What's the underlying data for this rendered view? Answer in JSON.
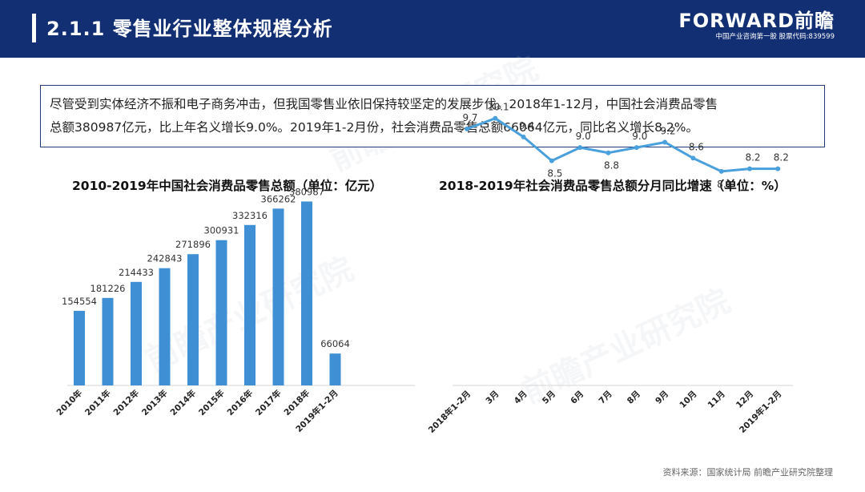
{
  "header": {
    "title": "2.1.1 零售业行业整体规模分析",
    "brand_name": "FORWARD前瞻",
    "brand_sub": "中国产业咨询第一股 股票代码:839599"
  },
  "summary": {
    "line1": "尽管受到实体经济不振和电子商务冲击，但我国零售业依旧保持较坚定的发展步伐。2018年1-12月，中国社会消费品零售",
    "line2": "总额380987亿元，比上年名义增长9.0%。2019年1-2月份，社会消费品零售总额66064亿元，同比名义增长8.2%。"
  },
  "watermark": "前瞻产业研究院",
  "source": "资料来源：国家统计局 前瞻产业研究院整理",
  "colors": {
    "header_bg": "#132f73",
    "bar": "#3f8fd5",
    "line": "#4aa0dc"
  },
  "chart_data": [
    {
      "type": "bar",
      "title": "2010-2019年中国社会消费品零售总额（单位：亿元）",
      "categories": [
        "2010年",
        "2011年",
        "2012年",
        "2013年",
        "2014年",
        "2015年",
        "2016年",
        "2017年",
        "2018年",
        "2019年1-2月"
      ],
      "values": [
        154554,
        181226,
        214433,
        242843,
        271896,
        300931,
        332316,
        366262,
        380987,
        66064
      ],
      "ylim": [
        0,
        400000
      ],
      "grid": false,
      "legend": "none"
    },
    {
      "type": "line",
      "title": "2018-2019年社会消费品零售总额分月同比增速（单位：%）",
      "categories": [
        "2018年1-2月",
        "3月",
        "4月",
        "5月",
        "6月",
        "7月",
        "8月",
        "9月",
        "10月",
        "11月",
        "12月",
        "2019年1-2月"
      ],
      "values": [
        9.7,
        10.1,
        9.4,
        8.5,
        9.0,
        8.8,
        9.0,
        9.2,
        8.6,
        8.1,
        8.2,
        8.2
      ],
      "ylim": [
        0,
        12
      ],
      "grid": false,
      "legend": "none"
    }
  ]
}
